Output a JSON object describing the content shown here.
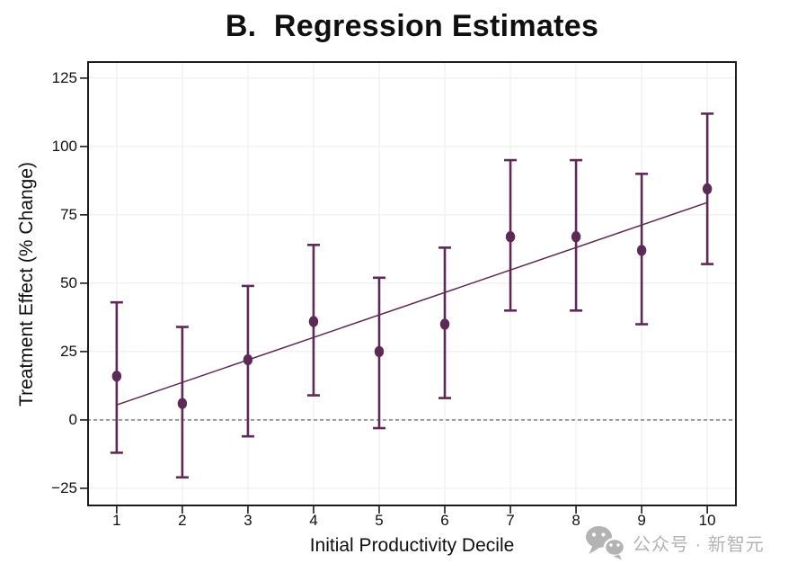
{
  "chart_data": {
    "type": "scatter",
    "title": "B.  Regression Estimates",
    "xlabel": "Initial Productivity Decile",
    "ylabel": "Treatment Effect (% Change)",
    "xlim": [
      0.55,
      10.45
    ],
    "ylim": [
      -31.6,
      131.2
    ],
    "grid": true,
    "legend": "none",
    "zero_line": 0,
    "xticks": [
      {
        "v": 1,
        "label": "1"
      },
      {
        "v": 2,
        "label": "2"
      },
      {
        "v": 3,
        "label": "3"
      },
      {
        "v": 4,
        "label": "4"
      },
      {
        "v": 5,
        "label": "5"
      },
      {
        "v": 6,
        "label": "6"
      },
      {
        "v": 7,
        "label": "7"
      },
      {
        "v": 8,
        "label": "8"
      },
      {
        "v": 9,
        "label": "9"
      },
      {
        "v": 10,
        "label": "10"
      }
    ],
    "yticks": [
      {
        "v": -25,
        "label": "−25"
      },
      {
        "v": 0,
        "label": "0"
      },
      {
        "v": 25,
        "label": "25"
      },
      {
        "v": 50,
        "label": "50"
      },
      {
        "v": 75,
        "label": "75"
      },
      {
        "v": 100,
        "label": "100"
      },
      {
        "v": 125,
        "label": "125"
      }
    ],
    "points": [
      {
        "x": 1,
        "y": 16,
        "lo": -12,
        "hi": 43
      },
      {
        "x": 2,
        "y": 6,
        "lo": -21,
        "hi": 34
      },
      {
        "x": 3,
        "y": 22,
        "lo": -6,
        "hi": 49
      },
      {
        "x": 4,
        "y": 36,
        "lo": 9,
        "hi": 64
      },
      {
        "x": 5,
        "y": 25,
        "lo": -3,
        "hi": 52
      },
      {
        "x": 6,
        "y": 35,
        "lo": 8,
        "hi": 63
      },
      {
        "x": 7,
        "y": 67,
        "lo": 40,
        "hi": 95
      },
      {
        "x": 8,
        "y": 67,
        "lo": 40,
        "hi": 95
      },
      {
        "x": 9,
        "y": 62,
        "lo": 35,
        "hi": 90
      },
      {
        "x": 10,
        "y": 84.5,
        "lo": 57,
        "hi": 112
      }
    ],
    "fit_line": {
      "x1": 1,
      "y1": 5.5,
      "x2": 10,
      "y2": 79.5
    },
    "colors": {
      "points": "#5c2a55",
      "fit": "#5c2a55",
      "grid": "#f1eef1",
      "zero": "#757575",
      "spine": "#1c1c1c"
    }
  },
  "watermark": {
    "icon": "wechat-icon",
    "text": "公众号 · 新智元",
    "color": "#b3b3b3"
  }
}
